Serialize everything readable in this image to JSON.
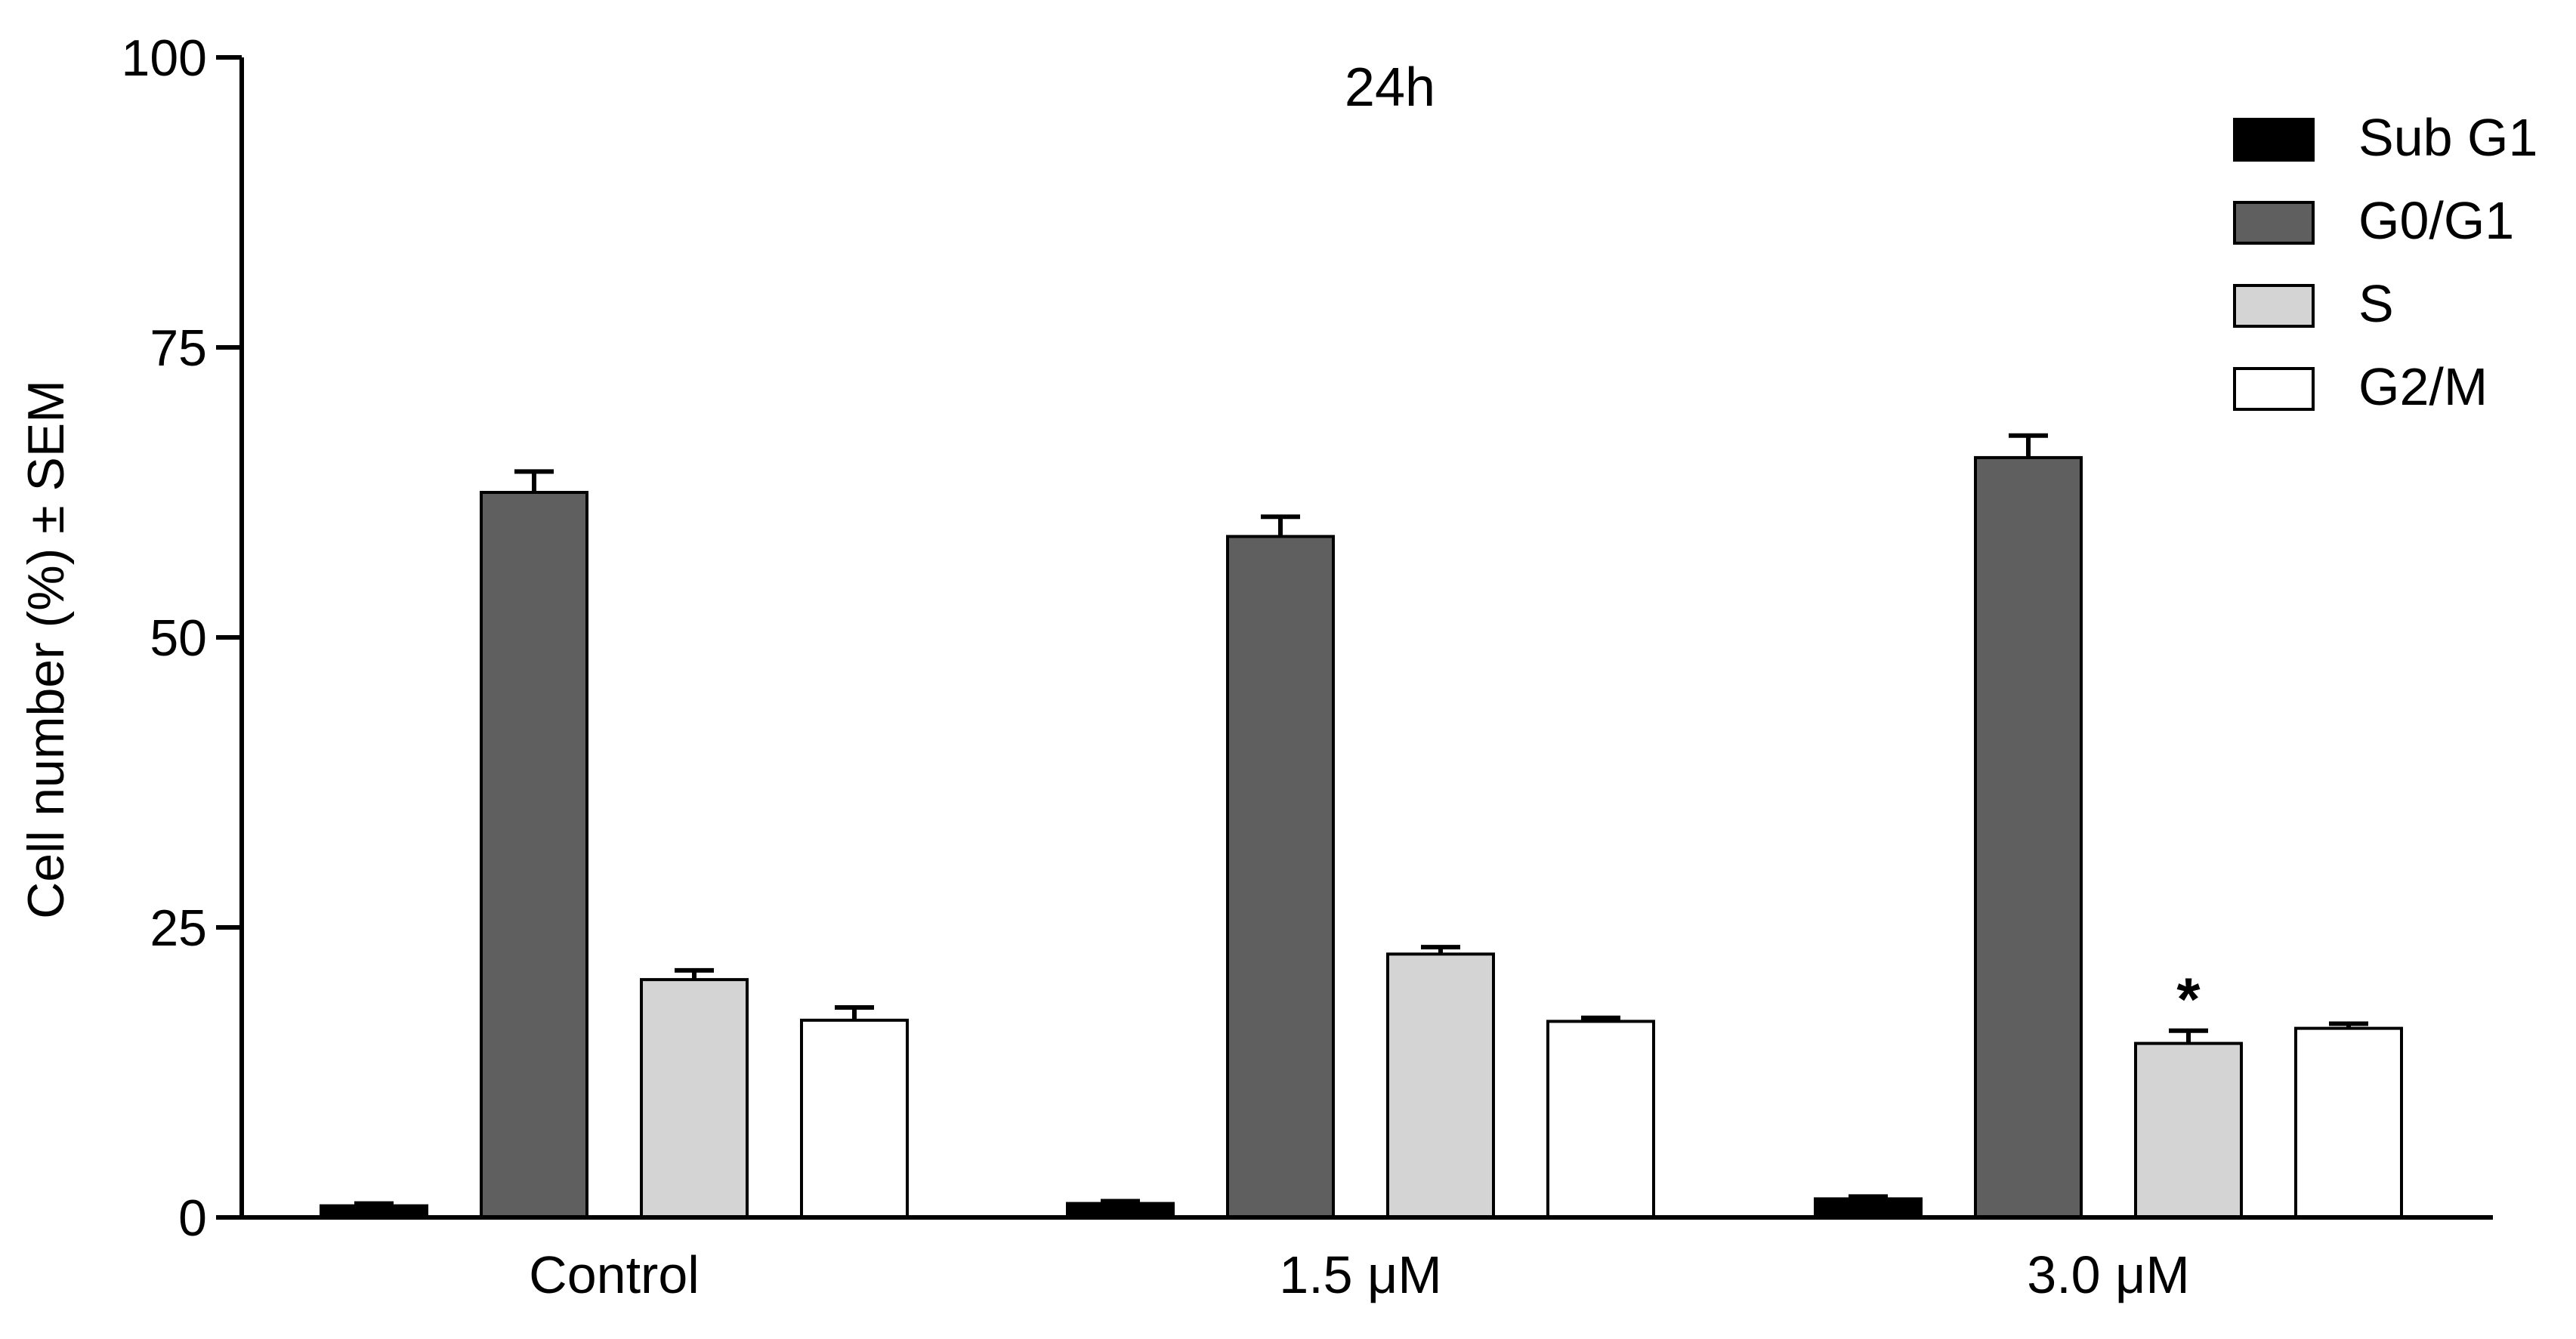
{
  "chart_data": {
    "type": "bar",
    "title": "24h",
    "xlabel": "",
    "ylabel": "Cell number (%) ± SEM",
    "ylim": [
      0,
      100
    ],
    "yticks": [
      0,
      25,
      50,
      75,
      100
    ],
    "categories": [
      "Control",
      "1.5 μM",
      "3.0 μM"
    ],
    "series": [
      {
        "name": "Sub G1",
        "color": "#000000",
        "values": [
          1.0,
          1.2,
          1.6
        ],
        "errors": [
          0.2,
          0.2,
          0.2
        ]
      },
      {
        "name": "G0/G1",
        "color": "#5f5f5f",
        "values": [
          62.5,
          58.7,
          65.5
        ],
        "errors": [
          1.8,
          1.7,
          1.9
        ]
      },
      {
        "name": "S",
        "color": "#d4d4d4",
        "values": [
          20.5,
          22.7,
          15.0
        ],
        "errors": [
          0.8,
          0.6,
          1.1
        ]
      },
      {
        "name": "G2/M",
        "color": "#ffffff",
        "values": [
          17.0,
          16.9,
          16.3
        ],
        "errors": [
          1.1,
          0.3,
          0.4
        ]
      }
    ],
    "annotations": [
      {
        "text": "*",
        "category": "3.0 μM",
        "series": "S"
      }
    ],
    "legend": "top-right",
    "grid": false
  }
}
